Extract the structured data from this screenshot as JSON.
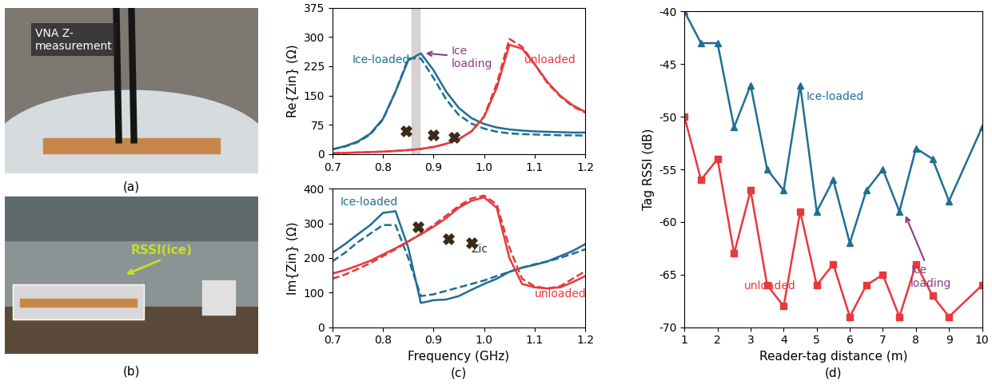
{
  "chart_data": [
    {
      "type": "line",
      "ylabel": "Re{Zin} (Ω)",
      "xlim": [
        0.7,
        1.2
      ],
      "xticks": [
        0.7,
        0.8,
        0.9,
        {
          "value": 1.0,
          "label": "1.0"
        },
        1.1,
        1.2
      ],
      "ylim": [
        0,
        375
      ],
      "yticks": [
        0,
        75,
        150,
        225,
        300,
        375
      ],
      "grid": false,
      "x": [
        0.7,
        0.725,
        0.75,
        0.775,
        0.8,
        0.825,
        0.85,
        0.875,
        0.9,
        0.925,
        0.95,
        0.975,
        1.0,
        1.025,
        1.05,
        1.075,
        1.1,
        1.125,
        1.15,
        1.175,
        1.2
      ],
      "series": [
        {
          "color": "#1f6e94",
          "line_style": "solid",
          "values": [
            12,
            20,
            32,
            52,
            90,
            160,
            240,
            258,
            215,
            160,
            118,
            92,
            77,
            68,
            63,
            60,
            58,
            57,
            56,
            55,
            55
          ]
        },
        {
          "color": "#1f6e94",
          "line_style": "dashed",
          "values": [
            12,
            19,
            30,
            50,
            88,
            160,
            245,
            245,
            195,
            140,
            100,
            78,
            65,
            57,
            53,
            51,
            50,
            49,
            48,
            48,
            47
          ]
        },
        {
          "color": "#e8383d",
          "line_style": "solid",
          "values": [
            2,
            3,
            4,
            5,
            6,
            8,
            10,
            13,
            18,
            26,
            38,
            58,
            95,
            170,
            280,
            270,
            230,
            185,
            150,
            125,
            108
          ]
        },
        {
          "color": "#e8383d",
          "line_style": "dashed",
          "values": [
            2,
            3,
            4,
            5,
            6,
            8,
            10,
            13,
            18,
            26,
            38,
            58,
            97,
            180,
            295,
            275,
            230,
            182,
            148,
            122,
            106
          ]
        }
      ],
      "highlight_x": [
        0.857,
        0.873
      ],
      "points": {
        "x": [
          0.845,
          0.9,
          0.94
        ],
        "values": [
          58,
          48,
          42
        ],
        "marker": "x",
        "color": "#3b2a1a"
      },
      "annotations": [
        {
          "text": "Ice-loaded",
          "color": "#1f6e94"
        },
        {
          "text": "unloaded",
          "color": "#e8383d"
        },
        {
          "text": "Ice\nloading",
          "color": "#8e3a80"
        }
      ]
    },
    {
      "type": "line",
      "panel_label": "(c)",
      "xlabel": "Frequency (GHz)",
      "ylabel": "Im{Zin} (Ω)",
      "xlim": [
        0.7,
        1.2
      ],
      "xticks": [
        0.7,
        0.8,
        0.9,
        {
          "value": 1.0,
          "label": "1.0"
        },
        1.1,
        1.2
      ],
      "ylim": [
        0,
        400
      ],
      "yticks": [
        0,
        100,
        200,
        300,
        400
      ],
      "grid": false,
      "x": [
        0.7,
        0.725,
        0.75,
        0.775,
        0.8,
        0.825,
        0.85,
        0.875,
        0.9,
        0.925,
        0.95,
        0.975,
        1.0,
        1.025,
        1.05,
        1.075,
        1.1,
        1.125,
        1.15,
        1.175,
        1.2
      ],
      "series": [
        {
          "color": "#1f6e94",
          "line_style": "solid",
          "values": [
            215,
            240,
            268,
            295,
            330,
            335,
            230,
            70,
            78,
            80,
            90,
            108,
            125,
            140,
            160,
            172,
            180,
            190,
            205,
            220,
            240
          ]
        },
        {
          "color": "#1f6e94",
          "line_style": "dashed",
          "values": [
            190,
            215,
            245,
            270,
            295,
            295,
            200,
            90,
            95,
            105,
            115,
            125,
            135,
            148,
            160,
            172,
            182,
            190,
            200,
            212,
            225
          ]
        },
        {
          "color": "#e8383d",
          "line_style": "solid",
          "values": [
            155,
            165,
            178,
            192,
            210,
            228,
            248,
            268,
            290,
            315,
            345,
            365,
            375,
            345,
            200,
            125,
            115,
            112,
            115,
            130,
            148
          ]
        },
        {
          "color": "#e8383d",
          "line_style": "dashed",
          "values": [
            140,
            152,
            168,
            185,
            205,
            225,
            247,
            270,
            295,
            322,
            350,
            372,
            380,
            355,
            230,
            140,
            118,
            112,
            118,
            140,
            162
          ]
        }
      ],
      "points": {
        "x": [
          0.87,
          0.93,
          0.975
        ],
        "values": [
          290,
          255,
          243
        ],
        "marker": "x",
        "color": "#3b2a1a",
        "label": "Zic"
      },
      "annotations": [
        {
          "text": "Ice-loaded",
          "color": "#1f6e94"
        },
        {
          "text": "unloaded",
          "color": "#e8383d"
        }
      ]
    },
    {
      "type": "line",
      "panel_label": "(d)",
      "xlabel": "Reader-tag distance (m)",
      "ylabel": "Tag RSSI (dB)",
      "xlim": [
        1,
        10
      ],
      "xticks": [
        1,
        2,
        3,
        4,
        5,
        6,
        7,
        8,
        9,
        10
      ],
      "ylim": [
        -70,
        -40
      ],
      "yticks": [
        -70,
        -65,
        -60,
        -55,
        -50,
        -45,
        -40
      ],
      "grid": false,
      "x": [
        1,
        1.5,
        2,
        2.5,
        3,
        3.5,
        4,
        4.5,
        5,
        5.5,
        6,
        6.5,
        7,
        7.5,
        8,
        8.5,
        9,
        10
      ],
      "series": [
        {
          "color": "#1f6e94",
          "line_style": "solid",
          "marker": "triangle",
          "values": [
            -40,
            -43,
            -43,
            -51,
            -47,
            -55,
            -57,
            -47,
            -59,
            -56,
            -62,
            -57,
            -55,
            -59,
            -53,
            -54,
            -58,
            -51
          ]
        },
        {
          "color": "#e8383d",
          "line_style": "solid",
          "marker": "square",
          "values": [
            -50,
            -56,
            -54,
            -63,
            -57,
            -66,
            -68,
            -59,
            -66,
            -64,
            -69,
            -66,
            -65,
            -69,
            -64,
            -67,
            -69,
            -66
          ]
        }
      ],
      "annotations": [
        {
          "text": "Ice-loaded",
          "color": "#1f6e94"
        },
        {
          "text": "unloaded",
          "color": "#e8383d"
        },
        {
          "text": "Ice\nloading",
          "color": "#8e3a80"
        }
      ]
    }
  ],
  "photos": [
    {
      "panel_label": "(a)",
      "text": "VNA Z-\nmeasurement"
    },
    {
      "panel_label": "(b)",
      "text": "RSSI(ice)"
    }
  ]
}
